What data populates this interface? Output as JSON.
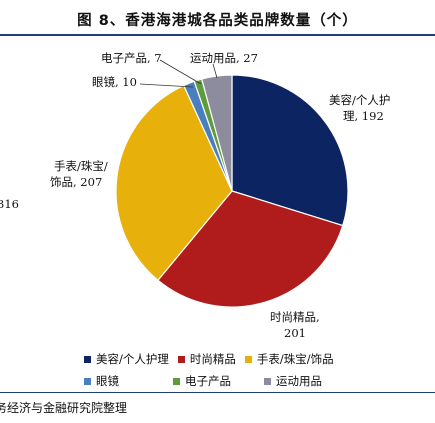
{
  "figure": {
    "title": "图 8、香港海港城各品类品牌数量（个）",
    "cut_off_number": "316",
    "source_text": "务经济与金融研究院整理"
  },
  "chart_data": {
    "type": "pie",
    "title": "图 8、香港海港城各品类品牌数量（个）",
    "start_angle_deg": 0,
    "direction": "clockwise",
    "legend_position": "bottom",
    "slices": [
      {
        "name": "美容/个人护理",
        "value": 192,
        "color": "#0c2461",
        "label_lines": [
          "美容/个人护",
          "理, 192"
        ]
      },
      {
        "name": "时尚精品",
        "value": 201,
        "color": "#b01c1c",
        "label_lines": [
          "时尚精品,",
          "201"
        ]
      },
      {
        "name": "手表/珠宝/饰品",
        "value": 207,
        "color": "#e8b00b",
        "label_lines": [
          "手表/珠宝/",
          "饰品, 207"
        ]
      },
      {
        "name": "眼镜",
        "value": 10,
        "color": "#4a7fbf",
        "label_lines": [
          "眼镜, 10"
        ]
      },
      {
        "name": "电子产品",
        "value": 7,
        "color": "#5e9b3c",
        "label_lines": [
          "电子产品, 7"
        ]
      },
      {
        "name": "运动用品",
        "value": 27,
        "color": "#8c8c9e",
        "label_lines": [
          "运动用品, 27"
        ]
      }
    ]
  }
}
